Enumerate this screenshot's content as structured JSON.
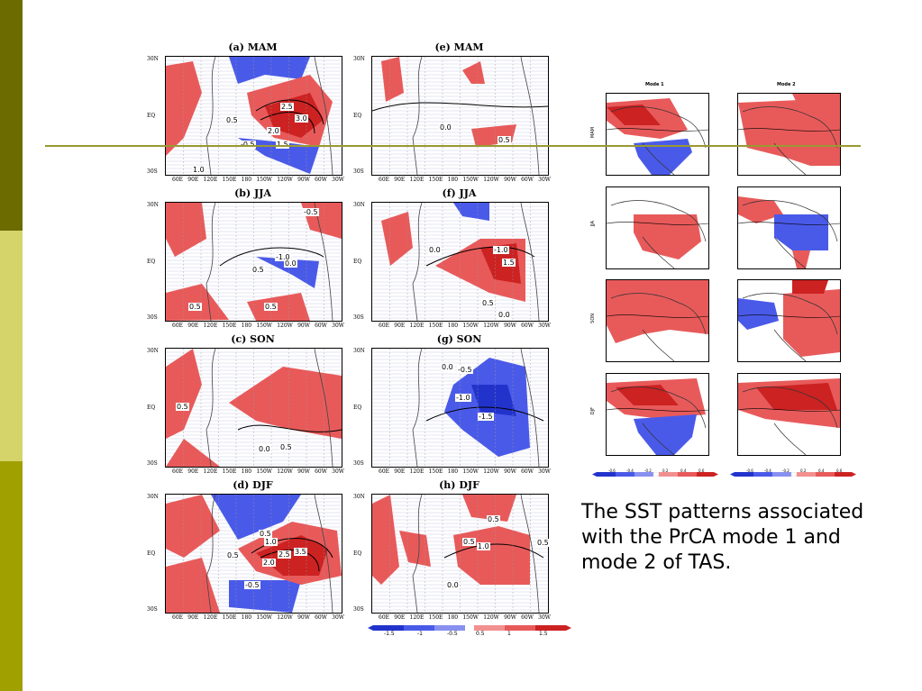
{
  "colors": {
    "sidebar_top": "#6b6b00",
    "sidebar_mid": "#d4d46a",
    "sidebar_bot": "#a0a000",
    "divider": "#999933",
    "warm": "#e85a5a",
    "warm_dark": "#cc2222",
    "cool": "#4a5ae8"
  },
  "panels": [
    {
      "title": "(a) MAM",
      "labels": [
        "2.5",
        "3.0",
        "2.0",
        "1.5",
        "0.5",
        "-0.5",
        "1.0"
      ]
    },
    {
      "title": "(b) JJA",
      "labels": [
        "-0.5",
        "-1.0",
        "0.0",
        "0.5",
        "0.5",
        "0.5"
      ]
    },
    {
      "title": "(c) SON",
      "labels": [
        "0.5",
        "0.0",
        "0.5"
      ]
    },
    {
      "title": "(d) DJF",
      "labels": [
        "0.5",
        "1.0",
        "2.0",
        "2.5",
        "3.5",
        "0.5",
        "-0.5"
      ]
    },
    {
      "title": "(e) MAM",
      "labels": [
        "0.0",
        "0.5"
      ]
    },
    {
      "title": "(f) JJA",
      "labels": [
        "-1.0",
        "1.5",
        "0.0",
        "0.5",
        "0.0"
      ]
    },
    {
      "title": "(g) SON",
      "labels": [
        "0.0",
        "-0.5",
        "-1.0",
        "-1.5"
      ]
    },
    {
      "title": "(h) DJF",
      "labels": [
        "0.5",
        "0.5",
        "1.0",
        "0.5",
        "0.0"
      ]
    }
  ],
  "lat_ticks": [
    "30N",
    "EQ",
    "30S"
  ],
  "lon_ticks": [
    "60E",
    "90E",
    "120E",
    "150E",
    "180",
    "150W",
    "120W",
    "90W",
    "60W",
    "30W"
  ],
  "colorbar_sst": [
    "-1.5",
    "-1",
    "-0.5",
    "0.5",
    "1",
    "1.5"
  ],
  "mode_headers": [
    "Mode 1",
    "Mode 2"
  ],
  "seasons": [
    "MAM",
    "JJA",
    "SON",
    "DJF"
  ],
  "colorbar_tas": [
    "-0.6",
    "-0.4",
    "-0.2",
    "0.2",
    "0.4",
    "0.6"
  ],
  "caption": "The SST patterns associated with the PrCA mode 1 and mode 2 of TAS."
}
